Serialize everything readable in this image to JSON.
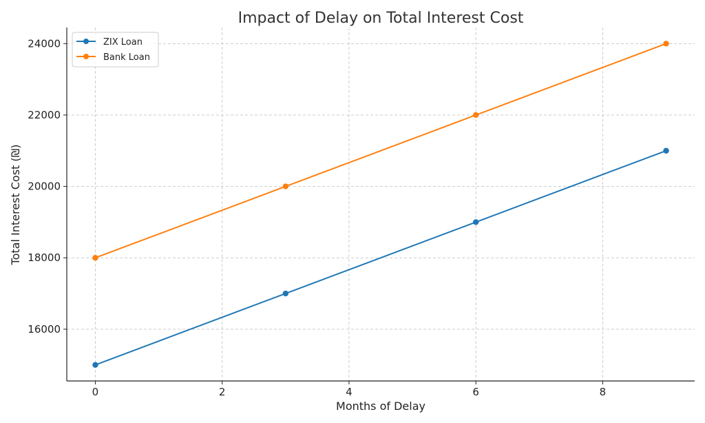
{
  "chart_data": {
    "type": "line",
    "title": "Impact of Delay on Total Interest Cost",
    "xlabel": "Months of Delay",
    "ylabel": "Total Interest Cost (₪)",
    "x": [
      0,
      3,
      6,
      9
    ],
    "series": [
      {
        "name": "ZIX Loan",
        "values": [
          15000,
          17000,
          19000,
          21000
        ],
        "color": "#1f77b4"
      },
      {
        "name": "Bank Loan",
        "values": [
          18000,
          20000,
          22000,
          24000
        ],
        "color": "#ff7f0e"
      }
    ],
    "xticks": [
      0,
      2,
      4,
      6,
      8
    ],
    "yticks": [
      16000,
      18000,
      20000,
      22000,
      24000
    ],
    "xlim": [
      -0.45,
      9.45
    ],
    "ylim": [
      14550,
      24450
    ],
    "grid": true,
    "legend": "top-left"
  }
}
